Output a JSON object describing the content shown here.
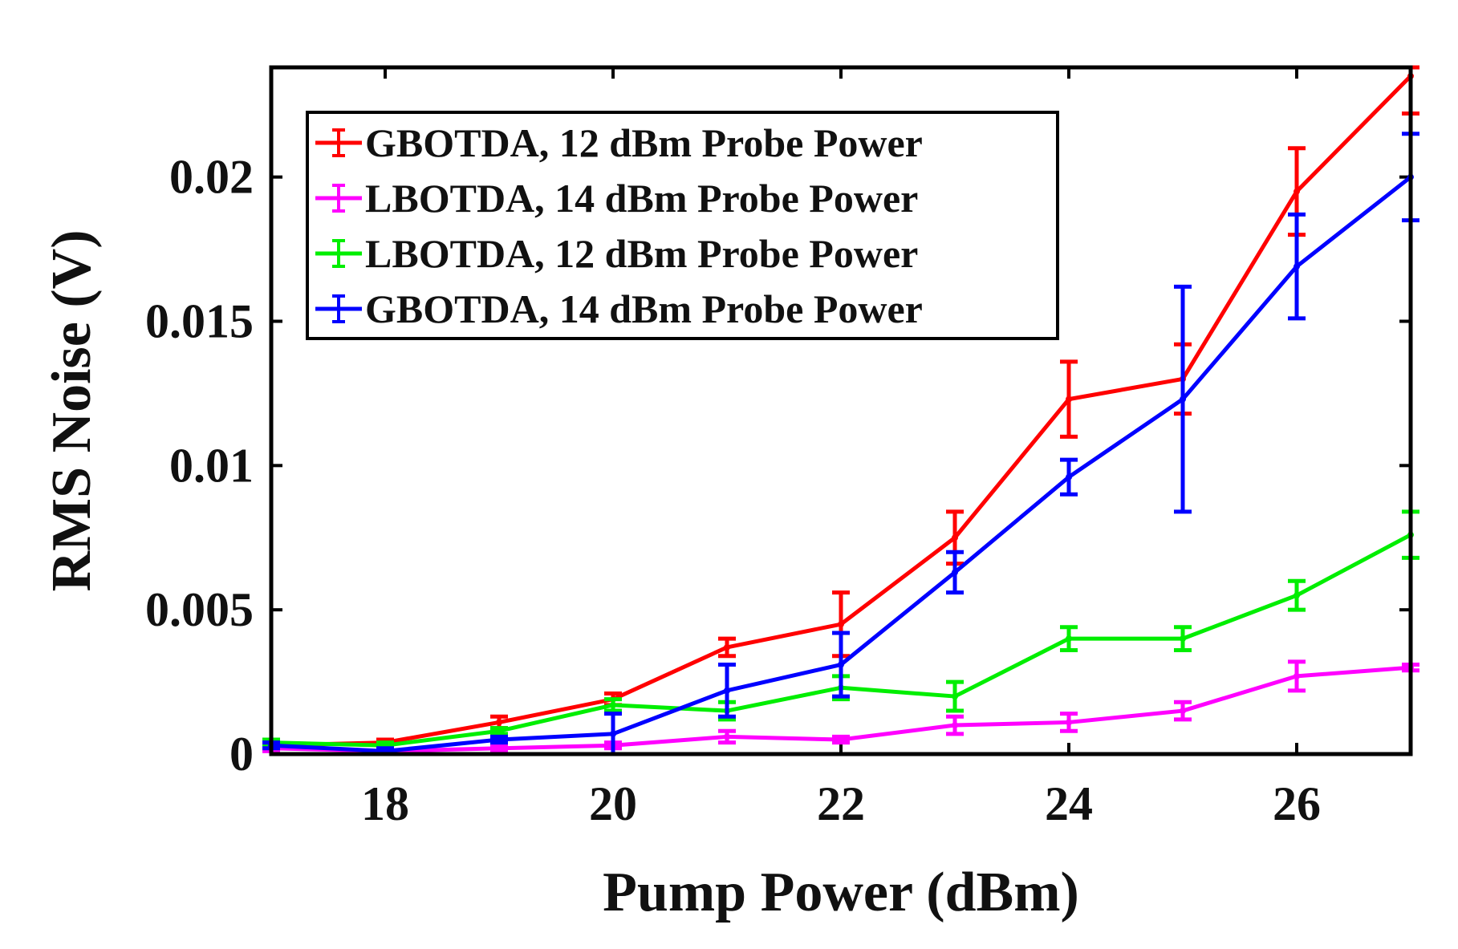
{
  "chart_data": {
    "type": "line",
    "title": "",
    "xlabel": "Pump Power (dBm)",
    "ylabel": "RMS Noise (V)",
    "xlim": [
      17,
      27
    ],
    "ylim": [
      0,
      0.0238
    ],
    "xticks": [
      18,
      20,
      22,
      24,
      26
    ],
    "xtick_labels": [
      "18",
      "20",
      "22",
      "24",
      "26"
    ],
    "yticks": [
      0,
      0.005,
      0.01,
      0.015,
      0.02
    ],
    "ytick_labels": [
      "0",
      "0.005",
      "0.01",
      "0.015",
      "0.02"
    ],
    "legend_position": "top-left",
    "x": [
      17,
      18,
      19,
      20,
      21,
      22,
      23,
      24,
      25,
      26,
      27
    ],
    "series": [
      {
        "name": "GBOTDA, 12 dBm Probe Power",
        "color": "#ff0000",
        "values": [
          0.0003,
          0.0004,
          0.0011,
          0.0019,
          0.0037,
          0.0045,
          0.0075,
          0.0123,
          0.013,
          0.0195,
          0.0235
        ],
        "errors": [
          0.0001,
          0.0001,
          0.0002,
          0.0002,
          0.0003,
          0.0011,
          0.0009,
          0.0013,
          0.0012,
          0.0015,
          0.0013
        ]
      },
      {
        "name": "LBOTDA, 14 dBm Probe Power",
        "color": "#ff00ff",
        "values": [
          0.0002,
          0.0001,
          0.0002,
          0.0003,
          0.0006,
          0.0005,
          0.001,
          0.0011,
          0.0015,
          0.0027,
          0.003
        ],
        "errors": [
          0.0001,
          0.0001,
          0.0001,
          0.0001,
          0.0002,
          0.0001,
          0.0003,
          0.0003,
          0.0003,
          0.0005,
          0.0001
        ]
      },
      {
        "name": "LBOTDA, 12 dBm Probe Power",
        "color": "#00ee00",
        "values": [
          0.0004,
          0.0003,
          0.0008,
          0.0017,
          0.0015,
          0.0023,
          0.002,
          0.004,
          0.004,
          0.0055,
          0.0076
        ],
        "errors": [
          0.0001,
          0.0001,
          0.0001,
          0.0002,
          0.0003,
          0.0004,
          0.0005,
          0.0004,
          0.0004,
          0.0005,
          0.0008
        ]
      },
      {
        "name": "GBOTDA, 14 dBm Probe Power",
        "color": "#0000ff",
        "values": [
          0.0003,
          0.0001,
          0.0005,
          0.0007,
          0.0022,
          0.0031,
          0.0063,
          0.0096,
          0.0123,
          0.0169,
          0.02
        ],
        "errors": [
          0.0001,
          0.0001,
          0.0001,
          0.0007,
          0.0009,
          0.0011,
          0.0007,
          0.0006,
          0.0039,
          0.0018,
          0.0015
        ]
      }
    ]
  }
}
